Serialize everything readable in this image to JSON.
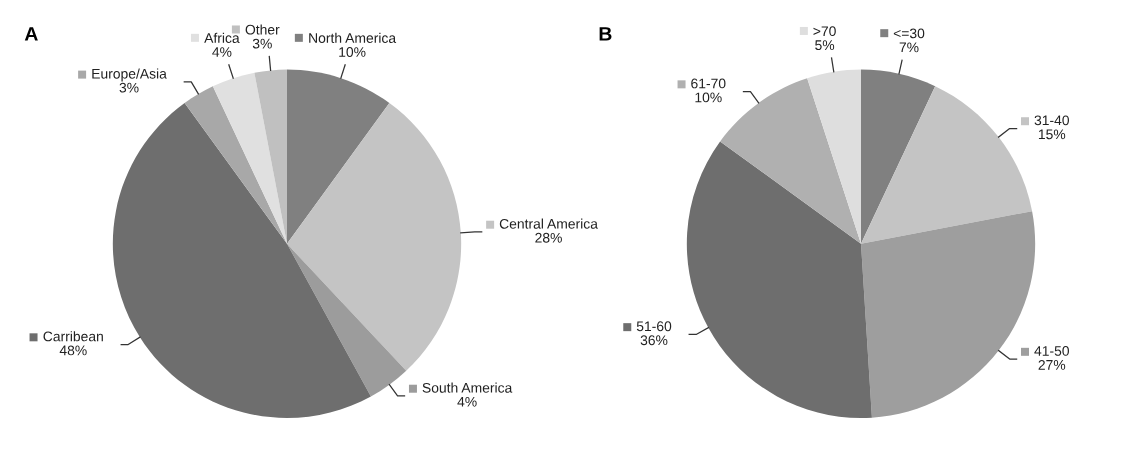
{
  "chart_data": [
    {
      "type": "pie",
      "title": "A",
      "legend": "right",
      "categories": [
        "North America",
        "Central America",
        "South America",
        "Carribean",
        "Europe/Asia",
        "Africa",
        "Other"
      ],
      "values": [
        10,
        28,
        4,
        48,
        3,
        4,
        3
      ],
      "value_labels": [
        "10%",
        "28%",
        "4%",
        "48%",
        "3%",
        "4%",
        "3%"
      ],
      "colors": [
        "#808080",
        "#c4c4c4",
        "#9c9c9c",
        "#6e6e6e",
        "#a8a8a8",
        "#e0e0e0",
        "#c0c0c0"
      ]
    },
    {
      "type": "pie",
      "title": "B",
      "legend": "right",
      "categories": [
        "<=30",
        "31-40",
        "41-50",
        "51-60",
        "61-70",
        ">70"
      ],
      "values": [
        7,
        15,
        27,
        36,
        10,
        5
      ],
      "value_labels": [
        "7%",
        "15%",
        "27%",
        "36%",
        "10%",
        "5%"
      ],
      "colors": [
        "#808080",
        "#c4c4c4",
        "#9e9e9e",
        "#6e6e6e",
        "#b0b0b0",
        "#dedede"
      ]
    }
  ]
}
